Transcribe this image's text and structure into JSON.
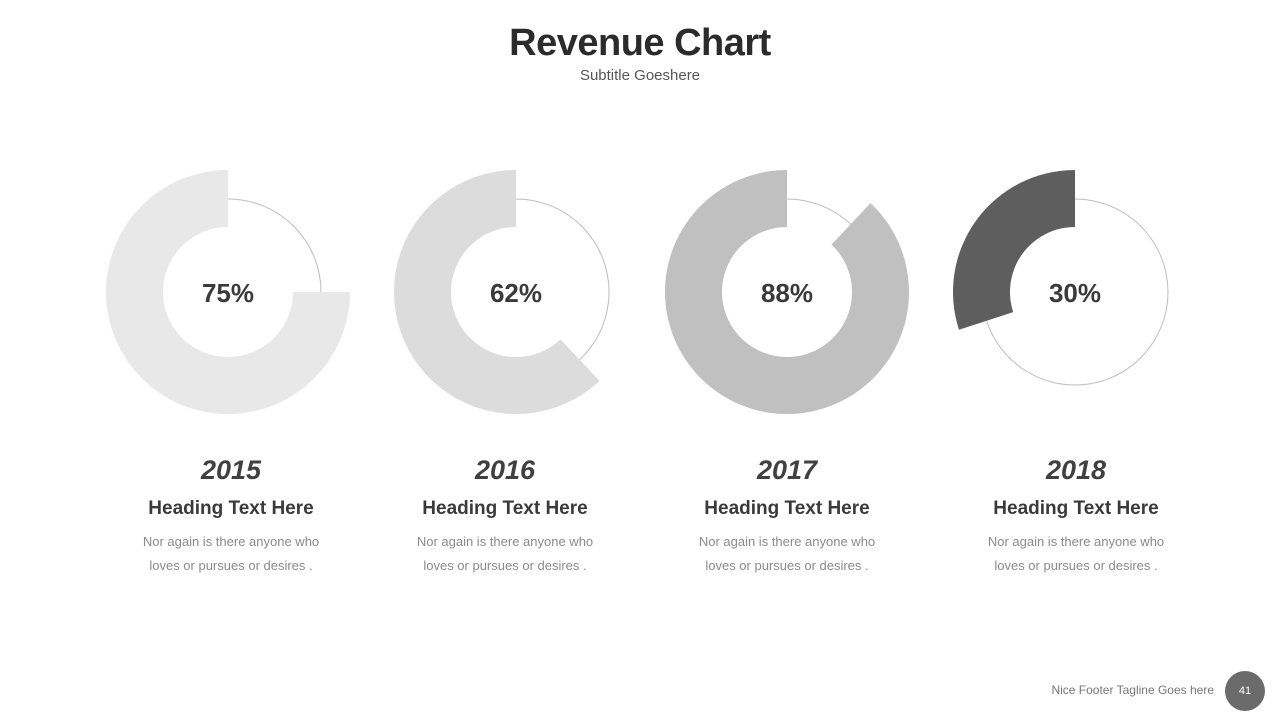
{
  "header": {
    "title": "Revenue Chart",
    "subtitle": "Subtitle Goeshere"
  },
  "chart_data": {
    "type": "pie",
    "variant": "donut",
    "items": [
      {
        "year": "2015",
        "value": 75,
        "label": "75%",
        "heading": "Heading Text Here",
        "desc1": "Nor again is there anyone who",
        "desc2": "loves or pursues or desires .",
        "color": "#e8e8e8"
      },
      {
        "year": "2016",
        "value": 62,
        "label": "62%",
        "heading": "Heading Text Here",
        "desc1": "Nor again is there anyone who",
        "desc2": "loves or pursues or desires .",
        "color": "#dcdcdc"
      },
      {
        "year": "2017",
        "value": 88,
        "label": "88%",
        "heading": "Heading Text Here",
        "desc1": "Nor again is there anyone who",
        "desc2": "loves or pursues or desires .",
        "color": "#c0c0c0"
      },
      {
        "year": "2018",
        "value": 30,
        "label": "30%",
        "heading": "Heading Text Here",
        "desc1": "Nor again is there anyone who",
        "desc2": "loves or pursues or desires .",
        "color": "#5e5e5e"
      }
    ],
    "track_color": "#bdbdbd"
  },
  "footer": {
    "tagline": "Nice Footer  Tagline Goes here",
    "page_number": "41"
  }
}
